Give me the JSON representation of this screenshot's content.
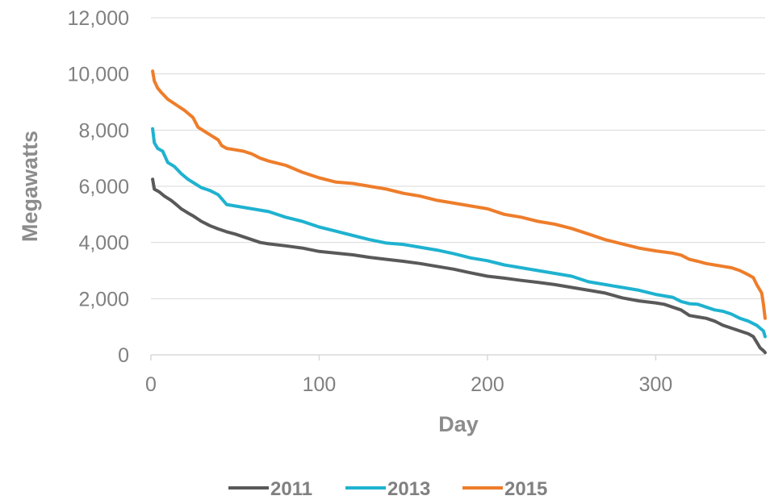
{
  "chart_data": {
    "type": "line",
    "title": "",
    "xlabel": "Day",
    "ylabel": "Megawatts",
    "xlim": [
      0,
      365
    ],
    "ylim": [
      0,
      12000
    ],
    "x_ticks": [
      0,
      100,
      200,
      300
    ],
    "x_tick_labels": [
      "0",
      "100",
      "200",
      "300"
    ],
    "y_ticks": [
      0,
      2000,
      4000,
      6000,
      8000,
      10000,
      12000
    ],
    "y_tick_labels": [
      "0",
      "2,000",
      "4,000",
      "6,000",
      "8,000",
      "10,000",
      "12,000"
    ],
    "grid": "horizontal",
    "legend_position": "bottom",
    "series": [
      {
        "name": "2011",
        "color": "#595959",
        "points": [
          [
            1,
            6250
          ],
          [
            2,
            5900
          ],
          [
            5,
            5800
          ],
          [
            8,
            5650
          ],
          [
            12,
            5500
          ],
          [
            15,
            5350
          ],
          [
            18,
            5200
          ],
          [
            22,
            5050
          ],
          [
            25,
            4950
          ],
          [
            30,
            4750
          ],
          [
            35,
            4600
          ],
          [
            40,
            4480
          ],
          [
            45,
            4380
          ],
          [
            50,
            4300
          ],
          [
            55,
            4200
          ],
          [
            60,
            4100
          ],
          [
            65,
            4000
          ],
          [
            70,
            3950
          ],
          [
            80,
            3880
          ],
          [
            90,
            3800
          ],
          [
            100,
            3680
          ],
          [
            110,
            3620
          ],
          [
            120,
            3560
          ],
          [
            130,
            3470
          ],
          [
            140,
            3400
          ],
          [
            150,
            3330
          ],
          [
            160,
            3250
          ],
          [
            170,
            3150
          ],
          [
            180,
            3050
          ],
          [
            190,
            2920
          ],
          [
            200,
            2800
          ],
          [
            210,
            2730
          ],
          [
            220,
            2650
          ],
          [
            230,
            2580
          ],
          [
            240,
            2500
          ],
          [
            250,
            2400
          ],
          [
            260,
            2300
          ],
          [
            270,
            2200
          ],
          [
            280,
            2030
          ],
          [
            290,
            1920
          ],
          [
            300,
            1850
          ],
          [
            305,
            1800
          ],
          [
            310,
            1700
          ],
          [
            315,
            1600
          ],
          [
            320,
            1400
          ],
          [
            325,
            1350
          ],
          [
            330,
            1300
          ],
          [
            335,
            1200
          ],
          [
            340,
            1050
          ],
          [
            345,
            950
          ],
          [
            350,
            850
          ],
          [
            355,
            750
          ],
          [
            358,
            650
          ],
          [
            360,
            450
          ],
          [
            362,
            250
          ],
          [
            364,
            150
          ],
          [
            365,
            80
          ]
        ]
      },
      {
        "name": "2013",
        "color": "#1fb2d0",
        "points": [
          [
            1,
            8050
          ],
          [
            2,
            7550
          ],
          [
            4,
            7350
          ],
          [
            7,
            7250
          ],
          [
            10,
            6850
          ],
          [
            14,
            6700
          ],
          [
            18,
            6450
          ],
          [
            22,
            6250
          ],
          [
            26,
            6100
          ],
          [
            30,
            5950
          ],
          [
            35,
            5850
          ],
          [
            40,
            5700
          ],
          [
            45,
            5350
          ],
          [
            50,
            5300
          ],
          [
            60,
            5200
          ],
          [
            70,
            5100
          ],
          [
            80,
            4900
          ],
          [
            90,
            4750
          ],
          [
            100,
            4550
          ],
          [
            110,
            4400
          ],
          [
            120,
            4250
          ],
          [
            130,
            4100
          ],
          [
            140,
            3980
          ],
          [
            150,
            3930
          ],
          [
            160,
            3830
          ],
          [
            170,
            3730
          ],
          [
            180,
            3600
          ],
          [
            190,
            3450
          ],
          [
            200,
            3350
          ],
          [
            210,
            3200
          ],
          [
            220,
            3100
          ],
          [
            230,
            3000
          ],
          [
            240,
            2900
          ],
          [
            250,
            2800
          ],
          [
            260,
            2600
          ],
          [
            270,
            2500
          ],
          [
            280,
            2400
          ],
          [
            290,
            2300
          ],
          [
            300,
            2150
          ],
          [
            305,
            2100
          ],
          [
            310,
            2050
          ],
          [
            315,
            1900
          ],
          [
            320,
            1820
          ],
          [
            325,
            1800
          ],
          [
            330,
            1700
          ],
          [
            335,
            1600
          ],
          [
            340,
            1550
          ],
          [
            345,
            1450
          ],
          [
            350,
            1300
          ],
          [
            355,
            1200
          ],
          [
            360,
            1050
          ],
          [
            362,
            950
          ],
          [
            364,
            850
          ],
          [
            365,
            650
          ]
        ]
      },
      {
        "name": "2015",
        "color": "#ee7d2b",
        "points": [
          [
            1,
            10100
          ],
          [
            2,
            9750
          ],
          [
            4,
            9500
          ],
          [
            6,
            9350
          ],
          [
            10,
            9100
          ],
          [
            15,
            8900
          ],
          [
            20,
            8700
          ],
          [
            25,
            8450
          ],
          [
            28,
            8100
          ],
          [
            32,
            7950
          ],
          [
            36,
            7800
          ],
          [
            40,
            7650
          ],
          [
            42,
            7450
          ],
          [
            45,
            7350
          ],
          [
            50,
            7300
          ],
          [
            55,
            7250
          ],
          [
            60,
            7150
          ],
          [
            65,
            7000
          ],
          [
            70,
            6900
          ],
          [
            80,
            6750
          ],
          [
            90,
            6500
          ],
          [
            100,
            6300
          ],
          [
            110,
            6150
          ],
          [
            120,
            6100
          ],
          [
            130,
            6000
          ],
          [
            140,
            5900
          ],
          [
            150,
            5750
          ],
          [
            160,
            5650
          ],
          [
            170,
            5500
          ],
          [
            180,
            5400
          ],
          [
            190,
            5300
          ],
          [
            200,
            5200
          ],
          [
            210,
            5000
          ],
          [
            220,
            4900
          ],
          [
            230,
            4750
          ],
          [
            240,
            4650
          ],
          [
            250,
            4500
          ],
          [
            260,
            4300
          ],
          [
            270,
            4100
          ],
          [
            280,
            3950
          ],
          [
            290,
            3800
          ],
          [
            300,
            3700
          ],
          [
            310,
            3620
          ],
          [
            315,
            3550
          ],
          [
            320,
            3400
          ],
          [
            325,
            3330
          ],
          [
            330,
            3250
          ],
          [
            340,
            3150
          ],
          [
            345,
            3100
          ],
          [
            350,
            3000
          ],
          [
            355,
            2850
          ],
          [
            358,
            2750
          ],
          [
            360,
            2500
          ],
          [
            362,
            2300
          ],
          [
            363,
            2200
          ],
          [
            364,
            1800
          ],
          [
            365,
            1300
          ]
        ]
      }
    ]
  }
}
